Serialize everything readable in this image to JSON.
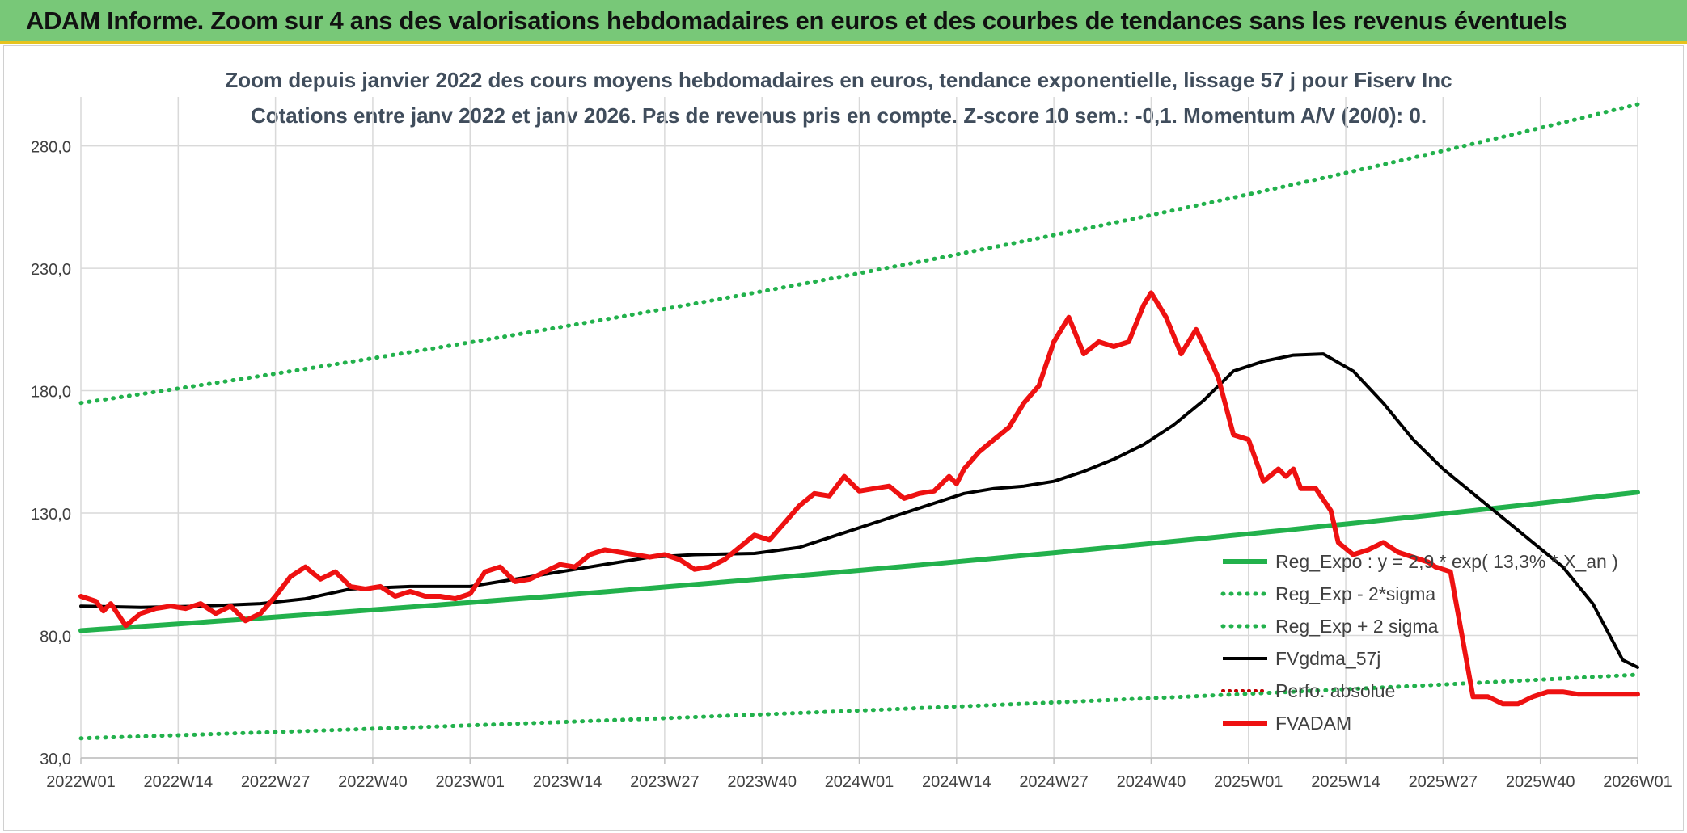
{
  "header": {
    "banner_title": "ADAM Informe. Zoom sur 4 ans des valorisations hebdomadaires en euros et des courbes de tendances sans les revenus éventuels"
  },
  "colors": {
    "banner_bg": "#78c878",
    "banner_border": "#e6c31e",
    "trend_green": "#22b14c",
    "fvadam_red": "#ee1111",
    "fvgdma_black": "#000000",
    "perfo_red": "#c00000",
    "grid": "#d9d9d9",
    "text": "#404040"
  },
  "chart_data": {
    "type": "line",
    "title": "Zoom depuis janvier 2022 des cours moyens hebdomadaires en euros, tendance exponentielle, lissage 57 j pour Fiserv Inc",
    "subtitle": "Cotations entre janv 2022 et janv 2026. Pas de revenus pris en compte. Z-score 10 sem.: -0,1. Momentum A/V (20/0): 0.",
    "xlabel": "",
    "ylabel": "",
    "ylim": [
      30,
      300
    ],
    "yticks": [
      30,
      80,
      130,
      180,
      230,
      280
    ],
    "ytick_labels": [
      "30,0",
      "80,0",
      "130,0",
      "180,0",
      "230,0",
      "280,0"
    ],
    "x_tick_labels": [
      "2022W01",
      "2022W14",
      "2022W27",
      "2022W40",
      "2023W01",
      "2023W14",
      "2023W27",
      "2023W40",
      "2024W01",
      "2024W14",
      "2024W27",
      "2024W40",
      "2025W01",
      "2025W14",
      "2025W27",
      "2025W40",
      "2026W01"
    ],
    "x_tick_weeks": [
      0,
      13,
      26,
      39,
      52,
      65,
      78,
      91,
      104,
      117,
      130,
      143,
      156,
      169,
      182,
      195,
      208
    ],
    "x_range": [
      0,
      208
    ],
    "grid": true,
    "legend_position": "right",
    "legend": [
      {
        "label": "Reg_Expo : y = 2,9 * exp( 13,3% * X_an )",
        "series": "reg_expo"
      },
      {
        "label": "Reg_Exp - 2*sigma",
        "series": "reg_minus"
      },
      {
        "label": "Reg_Exp + 2 sigma",
        "series": "reg_plus"
      },
      {
        "label": "FVgdma_57j",
        "series": "fvgdma"
      },
      {
        "label": "Perfo. absolue",
        "series": "perfo"
      },
      {
        "label": "FVADAM",
        "series": "fvadam"
      }
    ],
    "series": [
      {
        "name": "Reg_Expo : y = 2,9 * exp( 13,3% * X_an )",
        "key": "reg_expo",
        "style": "solid-green",
        "x": [
          0,
          208
        ],
        "values": [
          82,
          138.5
        ],
        "growth": "exponential"
      },
      {
        "name": "Reg_Exp - 2*sigma",
        "key": "reg_minus",
        "style": "dotted-green",
        "x": [
          0,
          208
        ],
        "values": [
          38,
          64
        ],
        "growth": "exponential"
      },
      {
        "name": "Reg_Exp + 2 sigma",
        "key": "reg_plus",
        "style": "dotted-green",
        "x": [
          0,
          208
        ],
        "values": [
          175,
          297
        ],
        "growth": "exponential"
      },
      {
        "name": "FVgdma_57j",
        "key": "fvgdma",
        "style": "solid-black",
        "x": [
          0,
          8,
          16,
          24,
          30,
          36,
          44,
          52,
          60,
          68,
          76,
          82,
          90,
          96,
          102,
          108,
          114,
          118,
          122,
          126,
          130,
          134,
          138,
          142,
          146,
          150,
          154,
          158,
          162,
          166,
          170,
          174,
          178,
          182,
          186,
          190,
          194,
          198,
          202,
          206,
          208
        ],
        "values": [
          92,
          91.5,
          92,
          93,
          95,
          99,
          100,
          100,
          104,
          108,
          112,
          113,
          113.5,
          116,
          122,
          128,
          134,
          138,
          140,
          141,
          143,
          147,
          152,
          158,
          166,
          176,
          188,
          192,
          194.5,
          195,
          188,
          175,
          160,
          148,
          138,
          128,
          118,
          108,
          93,
          70,
          67
        ]
      },
      {
        "name": "FVADAM",
        "key": "fvadam",
        "style": "solid-red",
        "x": [
          0,
          2,
          3,
          4,
          6,
          8,
          10,
          12,
          14,
          16,
          18,
          20,
          22,
          24,
          26,
          28,
          30,
          32,
          34,
          36,
          38,
          40,
          42,
          44,
          46,
          48,
          50,
          52,
          54,
          56,
          58,
          60,
          62,
          64,
          66,
          68,
          70,
          72,
          74,
          76,
          78,
          80,
          82,
          84,
          86,
          88,
          90,
          92,
          94,
          96,
          98,
          100,
          102,
          104,
          106,
          108,
          110,
          112,
          114,
          116,
          117,
          118,
          120,
          122,
          124,
          126,
          128,
          130,
          132,
          134,
          136,
          138,
          140,
          142,
          143,
          145,
          147,
          149,
          151,
          152,
          154,
          156,
          158,
          160,
          161,
          162,
          163,
          165,
          167,
          168,
          170,
          172,
          174,
          176,
          178,
          180,
          181,
          183,
          186,
          188,
          190,
          192,
          194,
          196,
          198,
          200,
          202,
          204,
          206,
          208
        ],
        "values": [
          96,
          94,
          90,
          93,
          84,
          89,
          91,
          92,
          91,
          93,
          89,
          92,
          86,
          89,
          96,
          104,
          108,
          103,
          106,
          100,
          99,
          100,
          96,
          98,
          96,
          96,
          95,
          97,
          106,
          108,
          102,
          103,
          106,
          109,
          108,
          113,
          115,
          114,
          113,
          112,
          113,
          111,
          107,
          108,
          111,
          116,
          121,
          119,
          126,
          133,
          138,
          137,
          145,
          139,
          140,
          141,
          136,
          138,
          139,
          145,
          142,
          148,
          155,
          160,
          165,
          175,
          182,
          200,
          210,
          195,
          200,
          198,
          200,
          215,
          220,
          210,
          195,
          205,
          192,
          185,
          162,
          160,
          143,
          148,
          145,
          148,
          140,
          140,
          131,
          118,
          113,
          115,
          118,
          114,
          112,
          110,
          108,
          106,
          55,
          55,
          52,
          52,
          55,
          57,
          57,
          56,
          56,
          56,
          56,
          56
        ]
      }
    ]
  }
}
